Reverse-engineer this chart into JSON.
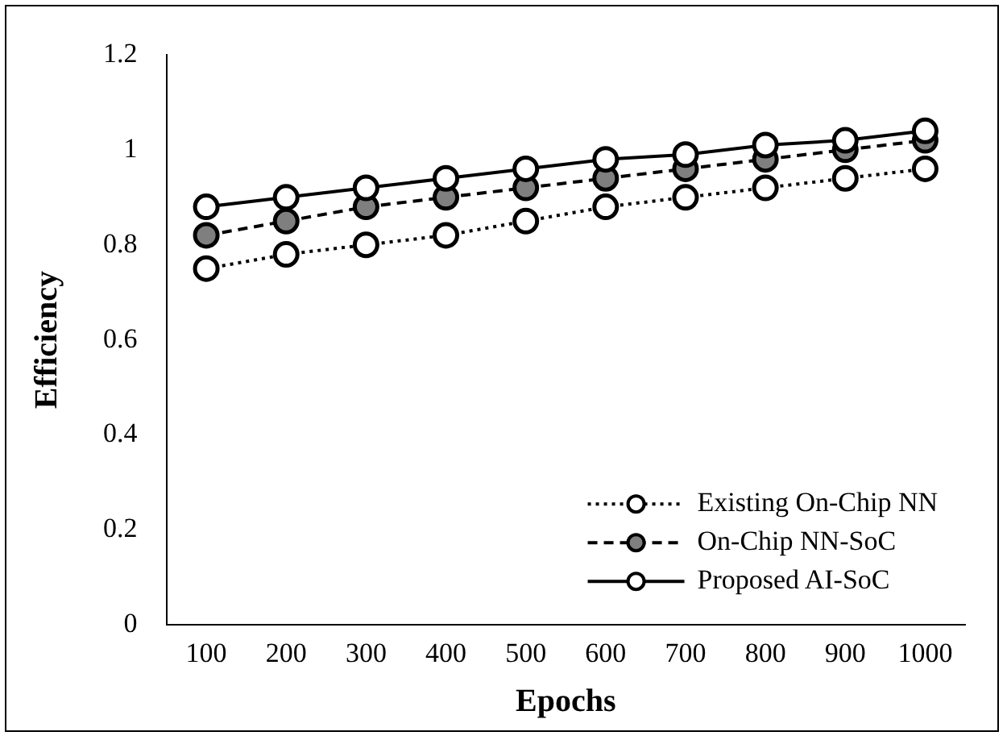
{
  "chart_data": {
    "type": "line",
    "xlabel": "Epochs",
    "ylabel": "Efficiency",
    "categories": [
      "100",
      "200",
      "300",
      "400",
      "500",
      "600",
      "700",
      "800",
      "900",
      "1000"
    ],
    "series": [
      {
        "name": "Existing On-Chip NN",
        "color": "#000000",
        "line_style": "dotted",
        "values": [
          0.75,
          0.78,
          0.8,
          0.82,
          0.85,
          0.88,
          0.9,
          0.92,
          0.94,
          0.96
        ]
      },
      {
        "name": "On-Chip NN-SoC",
        "color": "#000000",
        "line_style": "dashed",
        "values": [
          0.82,
          0.85,
          0.88,
          0.9,
          0.92,
          0.94,
          0.96,
          0.98,
          1.0,
          1.02
        ]
      },
      {
        "name": "Proposed AI-SoC",
        "color": "#000000",
        "line_style": "solid",
        "values": [
          0.88,
          0.9,
          0.92,
          0.94,
          0.96,
          0.98,
          0.99,
          1.01,
          1.02,
          1.04
        ]
      }
    ],
    "ylim": [
      0,
      1.2
    ],
    "yticks": [
      0,
      0.2,
      0.4,
      0.6,
      0.8,
      1,
      1.2
    ],
    "grid": false,
    "legend": "bottom right",
    "marker": "circle"
  }
}
